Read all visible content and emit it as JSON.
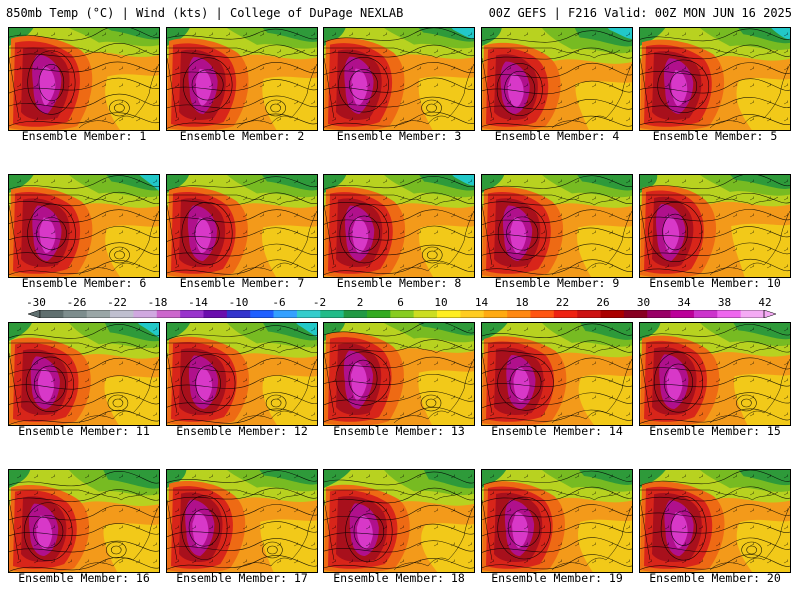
{
  "header": {
    "left": "850mb Temp (°C) | Wind (kts) | College of DuPage NEXLAB",
    "right": "00Z GEFS | F216 Valid: 00Z MON JUN 16 2025"
  },
  "member_caption_prefix": "Ensemble Member: ",
  "members": [
    1,
    2,
    3,
    4,
    5,
    6,
    7,
    8,
    9,
    10,
    11,
    12,
    13,
    14,
    15,
    16,
    17,
    18,
    19,
    20
  ],
  "colorbar": {
    "tick_labels": [
      "-30",
      "-26",
      "-22",
      "-18",
      "-14",
      "-10",
      "-6",
      "-2",
      "2",
      "6",
      "10",
      "14",
      "18",
      "22",
      "26",
      "30",
      "34",
      "38",
      "42"
    ],
    "colors": [
      "#5f6f6f",
      "#7d8d8d",
      "#9aa6a6",
      "#bfbfcf",
      "#d0a8e0",
      "#cc66cc",
      "#9933cc",
      "#6a0dad",
      "#3333cc",
      "#1f5fff",
      "#33a0ff",
      "#33cccc",
      "#22bb88",
      "#229944",
      "#33aa22",
      "#88cc22",
      "#ccdd22",
      "#ffee22",
      "#ffcc22",
      "#ffaa11",
      "#ff8811",
      "#ff5511",
      "#ee2211",
      "#cc1111",
      "#aa0000",
      "#880022",
      "#990066",
      "#bb0099",
      "#cc33cc",
      "#ee66ee",
      "#f4aaf4"
    ]
  },
  "map_palette": {
    "green": "#2e9a3a",
    "lightgreen": "#77bb22",
    "yellowgreen": "#b8d220",
    "yellow": "#f2d81a",
    "orange": "#f39a1a",
    "darkorange": "#ee6a14",
    "red": "#d8251a",
    "darkred": "#a8101c",
    "magenta": "#b0108c",
    "pink": "#d838c8",
    "cyan": "#22c8c8"
  }
}
